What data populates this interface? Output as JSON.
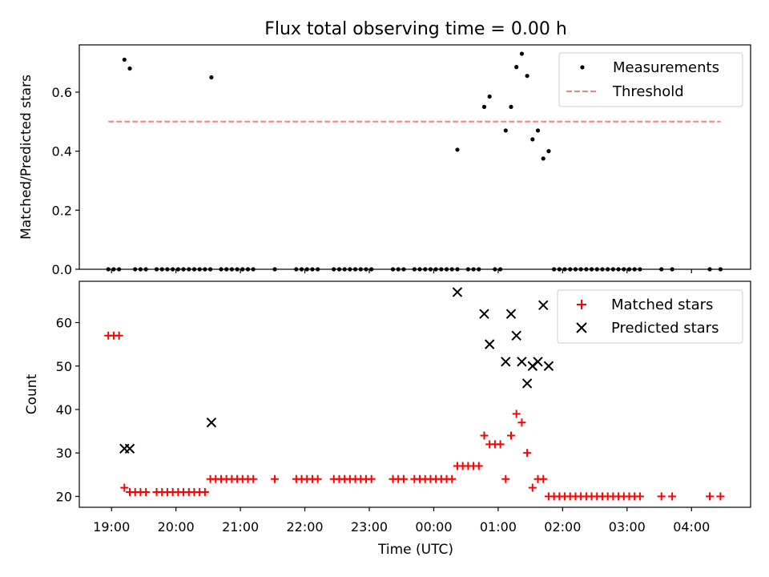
{
  "chart_data": [
    {
      "type": "scatter",
      "title": "Flux total observing time = 0.00 h",
      "xlabel": "",
      "ylabel": "Matched/Predicted stars",
      "xlim": [
        "18:30",
        "04:55"
      ],
      "ylim": [
        0,
        0.76
      ],
      "yticks": [
        0.0,
        0.2,
        0.4,
        0.6
      ],
      "ytick_labels": [
        "0.0",
        "0.2",
        "0.4",
        "0.6"
      ],
      "legend_position": "upper-right",
      "grid": false,
      "series": [
        {
          "name": "Measurements",
          "marker": "dot",
          "color": "#000000",
          "points": [
            [
              "18:57",
              0
            ],
            [
              "19:02",
              0
            ],
            [
              "19:07",
              0
            ],
            [
              "19:12",
              0.71
            ],
            [
              "19:17",
              0.68
            ],
            [
              "19:22",
              0
            ],
            [
              "19:27",
              0
            ],
            [
              "19:32",
              0
            ],
            [
              "19:42",
              0
            ],
            [
              "19:47",
              0
            ],
            [
              "19:52",
              0
            ],
            [
              "19:57",
              0
            ],
            [
              "20:02",
              0
            ],
            [
              "20:07",
              0
            ],
            [
              "20:12",
              0
            ],
            [
              "20:17",
              0
            ],
            [
              "20:22",
              0
            ],
            [
              "20:27",
              0
            ],
            [
              "20:32",
              0
            ],
            [
              "20:33",
              0.65
            ],
            [
              "20:42",
              0
            ],
            [
              "20:47",
              0
            ],
            [
              "20:52",
              0
            ],
            [
              "20:57",
              0
            ],
            [
              "21:02",
              0
            ],
            [
              "21:07",
              0
            ],
            [
              "21:12",
              0
            ],
            [
              "21:32",
              0
            ],
            [
              "21:52",
              0
            ],
            [
              "21:57",
              0
            ],
            [
              "22:02",
              0
            ],
            [
              "22:07",
              0
            ],
            [
              "22:12",
              0
            ],
            [
              "22:27",
              0
            ],
            [
              "22:32",
              0
            ],
            [
              "22:37",
              0
            ],
            [
              "22:42",
              0
            ],
            [
              "22:47",
              0
            ],
            [
              "22:52",
              0
            ],
            [
              "22:57",
              0
            ],
            [
              "23:02",
              0
            ],
            [
              "23:22",
              0
            ],
            [
              "23:27",
              0
            ],
            [
              "23:32",
              0
            ],
            [
              "23:42",
              0
            ],
            [
              "23:47",
              0
            ],
            [
              "23:52",
              0
            ],
            [
              "23:57",
              0
            ],
            [
              "00:02",
              0
            ],
            [
              "00:07",
              0
            ],
            [
              "00:12",
              0
            ],
            [
              "00:17",
              0
            ],
            [
              "00:22",
              0
            ],
            [
              "00:22",
              0.405
            ],
            [
              "00:32",
              0
            ],
            [
              "00:37",
              0
            ],
            [
              "00:42",
              0
            ],
            [
              "00:47",
              0.55
            ],
            [
              "00:52",
              0.585
            ],
            [
              "00:57",
              0
            ],
            [
              "01:02",
              0
            ],
            [
              "01:07",
              0.47
            ],
            [
              "01:12",
              0.55
            ],
            [
              "01:17",
              0.685
            ],
            [
              "01:22",
              0.73
            ],
            [
              "01:27",
              0.655
            ],
            [
              "01:32",
              0.44
            ],
            [
              "01:37",
              0.47
            ],
            [
              "01:42",
              0.375
            ],
            [
              "01:47",
              0.4
            ],
            [
              "01:52",
              0
            ],
            [
              "01:57",
              0
            ],
            [
              "02:02",
              0
            ],
            [
              "02:07",
              0
            ],
            [
              "02:12",
              0
            ],
            [
              "02:17",
              0
            ],
            [
              "02:22",
              0
            ],
            [
              "02:27",
              0
            ],
            [
              "02:32",
              0
            ],
            [
              "02:37",
              0
            ],
            [
              "02:42",
              0
            ],
            [
              "02:47",
              0
            ],
            [
              "02:52",
              0
            ],
            [
              "02:57",
              0
            ],
            [
              "03:02",
              0
            ],
            [
              "03:07",
              0
            ],
            [
              "03:12",
              0
            ],
            [
              "03:32",
              0
            ],
            [
              "03:42",
              0
            ],
            [
              "04:17",
              0
            ],
            [
              "04:27",
              0
            ]
          ]
        },
        {
          "name": "Threshold",
          "style": "dashed-line",
          "color": "#ff7f7f",
          "points": [
            [
              "18:57",
              0.5
            ],
            [
              "04:27",
              0.5
            ]
          ]
        }
      ]
    },
    {
      "type": "scatter",
      "title": "",
      "xlabel": "Time (UTC)",
      "ylabel": "Count",
      "xlim": [
        "18:30",
        "04:55"
      ],
      "ylim": [
        17.5,
        69.5
      ],
      "yticks": [
        20,
        30,
        40,
        50,
        60
      ],
      "ytick_labels": [
        "20",
        "30",
        "40",
        "50",
        "60"
      ],
      "xticks": [
        "19:00",
        "20:00",
        "21:00",
        "22:00",
        "23:00",
        "00:00",
        "01:00",
        "02:00",
        "03:00",
        "04:00"
      ],
      "xtick_labels": [
        "19:00",
        "20:00",
        "21:00",
        "22:00",
        "23:00",
        "00:00",
        "01:00",
        "02:00",
        "03:00",
        "04:00"
      ],
      "legend_position": "upper-right",
      "grid": false,
      "series": [
        {
          "name": "Matched stars",
          "marker": "plus",
          "color": "#ff0000",
          "points": [
            [
              "18:57",
              57
            ],
            [
              "19:02",
              57
            ],
            [
              "19:07",
              57
            ],
            [
              "19:12",
              22
            ],
            [
              "19:17",
              21
            ],
            [
              "19:22",
              21
            ],
            [
              "19:27",
              21
            ],
            [
              "19:32",
              21
            ],
            [
              "19:42",
              21
            ],
            [
              "19:47",
              21
            ],
            [
              "19:52",
              21
            ],
            [
              "19:57",
              21
            ],
            [
              "20:02",
              21
            ],
            [
              "20:07",
              21
            ],
            [
              "20:12",
              21
            ],
            [
              "20:17",
              21
            ],
            [
              "20:22",
              21
            ],
            [
              "20:27",
              21
            ],
            [
              "20:32",
              24
            ],
            [
              "20:37",
              24
            ],
            [
              "20:42",
              24
            ],
            [
              "20:47",
              24
            ],
            [
              "20:52",
              24
            ],
            [
              "20:57",
              24
            ],
            [
              "21:02",
              24
            ],
            [
              "21:07",
              24
            ],
            [
              "21:12",
              24
            ],
            [
              "21:32",
              24
            ],
            [
              "21:52",
              24
            ],
            [
              "21:57",
              24
            ],
            [
              "22:02",
              24
            ],
            [
              "22:07",
              24
            ],
            [
              "22:12",
              24
            ],
            [
              "22:27",
              24
            ],
            [
              "22:32",
              24
            ],
            [
              "22:37",
              24
            ],
            [
              "22:42",
              24
            ],
            [
              "22:47",
              24
            ],
            [
              "22:52",
              24
            ],
            [
              "22:57",
              24
            ],
            [
              "23:02",
              24
            ],
            [
              "23:22",
              24
            ],
            [
              "23:27",
              24
            ],
            [
              "23:32",
              24
            ],
            [
              "23:42",
              24
            ],
            [
              "23:47",
              24
            ],
            [
              "23:52",
              24
            ],
            [
              "23:57",
              24
            ],
            [
              "00:02",
              24
            ],
            [
              "00:07",
              24
            ],
            [
              "00:12",
              24
            ],
            [
              "00:17",
              24
            ],
            [
              "00:22",
              27
            ],
            [
              "00:27",
              27
            ],
            [
              "00:32",
              27
            ],
            [
              "00:37",
              27
            ],
            [
              "00:42",
              27
            ],
            [
              "00:47",
              34
            ],
            [
              "00:52",
              32
            ],
            [
              "00:57",
              32
            ],
            [
              "01:02",
              32
            ],
            [
              "01:07",
              24
            ],
            [
              "01:12",
              34
            ],
            [
              "01:17",
              39
            ],
            [
              "01:22",
              37
            ],
            [
              "01:27",
              30
            ],
            [
              "01:32",
              22
            ],
            [
              "01:37",
              24
            ],
            [
              "01:42",
              24
            ],
            [
              "01:47",
              20
            ],
            [
              "01:52",
              20
            ],
            [
              "01:57",
              20
            ],
            [
              "02:02",
              20
            ],
            [
              "02:07",
              20
            ],
            [
              "02:12",
              20
            ],
            [
              "02:17",
              20
            ],
            [
              "02:22",
              20
            ],
            [
              "02:27",
              20
            ],
            [
              "02:32",
              20
            ],
            [
              "02:37",
              20
            ],
            [
              "02:42",
              20
            ],
            [
              "02:47",
              20
            ],
            [
              "02:52",
              20
            ],
            [
              "02:57",
              20
            ],
            [
              "03:02",
              20
            ],
            [
              "03:07",
              20
            ],
            [
              "03:12",
              20
            ],
            [
              "03:32",
              20
            ],
            [
              "03:42",
              20
            ],
            [
              "04:17",
              20
            ],
            [
              "04:27",
              20
            ]
          ]
        },
        {
          "name": "Predicted stars",
          "marker": "x",
          "color": "#000000",
          "points": [
            [
              "19:12",
              31
            ],
            [
              "19:17",
              31
            ],
            [
              "20:33",
              37
            ],
            [
              "00:22",
              67
            ],
            [
              "00:47",
              62
            ],
            [
              "00:52",
              55
            ],
            [
              "01:07",
              51
            ],
            [
              "01:12",
              62
            ],
            [
              "01:17",
              57
            ],
            [
              "01:22",
              51
            ],
            [
              "01:27",
              46
            ],
            [
              "01:32",
              50
            ],
            [
              "01:37",
              51
            ],
            [
              "01:42",
              64
            ],
            [
              "01:47",
              50
            ]
          ]
        }
      ]
    }
  ]
}
